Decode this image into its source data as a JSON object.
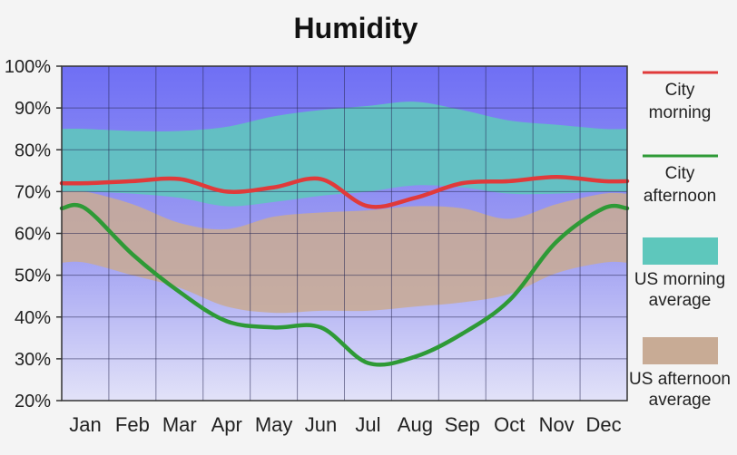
{
  "chart_data": {
    "type": "area",
    "title": "Humidity",
    "categories": [
      "Jan",
      "Feb",
      "Mar",
      "Apr",
      "May",
      "Jun",
      "Jul",
      "Aug",
      "Sep",
      "Oct",
      "Nov",
      "Dec"
    ],
    "ylim": [
      20,
      100
    ],
    "y_ticks": [
      "20%",
      "30%",
      "40%",
      "50%",
      "60%",
      "70%",
      "80%",
      "90%",
      "100%"
    ],
    "y_tick_values": [
      20,
      30,
      40,
      50,
      60,
      70,
      80,
      90,
      100
    ],
    "grid": true,
    "legend_position": "right",
    "series": [
      {
        "name": "City morning",
        "kind": "line",
        "color": "#e03a3a",
        "values": [
          72,
          72.5,
          73,
          70,
          71,
          73,
          66.5,
          68.5,
          72,
          72.5,
          73.5,
          72.5
        ]
      },
      {
        "name": "City afternoon",
        "kind": "line",
        "color": "#2e9a36",
        "values": [
          66,
          55,
          46,
          39,
          37.5,
          37.5,
          29,
          30.5,
          36,
          44,
          58,
          66
        ]
      },
      {
        "name": "US morning average",
        "kind": "band",
        "color": "#5ec7bc",
        "lower": [
          70,
          69.5,
          68.5,
          66.5,
          67.5,
          69,
          70,
          71.5,
          71,
          69.5,
          69.5,
          70
        ],
        "upper": [
          85,
          84.5,
          84.5,
          85.5,
          88,
          89.5,
          90.5,
          91.5,
          89.5,
          87,
          86,
          85
        ]
      },
      {
        "name": "US afternoon average",
        "kind": "band",
        "color": "#c8ab95",
        "lower": [
          53,
          50,
          47,
          42.5,
          41,
          41.5,
          41.5,
          42.5,
          43.5,
          45.5,
          50.5,
          53
        ],
        "upper": [
          70,
          67,
          62.5,
          61,
          64,
          65,
          65.5,
          66.5,
          66,
          63.5,
          67,
          69.5
        ]
      }
    ]
  },
  "legend": [
    {
      "line1": "City",
      "line2": "morning",
      "swatch": "line",
      "color": "#e03a3a"
    },
    {
      "line1": "City",
      "line2": "afternoon",
      "swatch": "line",
      "color": "#2e9a36"
    },
    {
      "line1": "US morning",
      "line2": "average",
      "swatch": "box",
      "color": "#5ec7bc"
    },
    {
      "line1": "US afternoon",
      "line2": "average",
      "swatch": "box",
      "color": "#c8ab95"
    }
  ]
}
